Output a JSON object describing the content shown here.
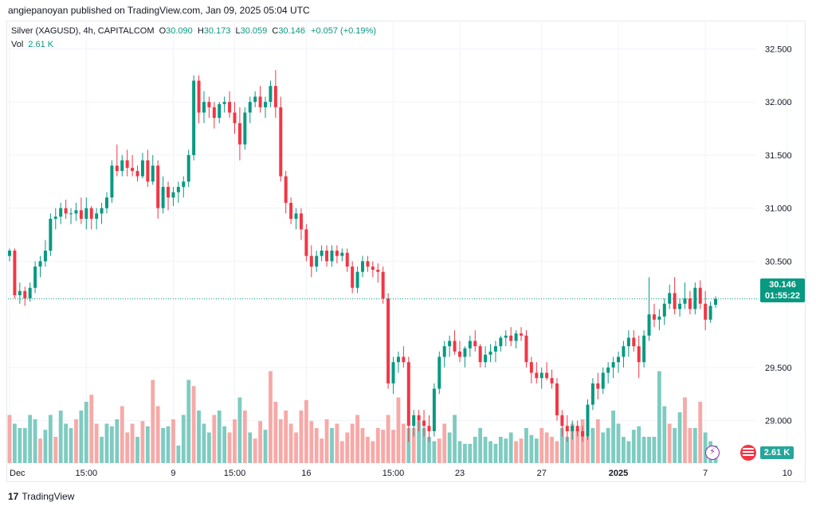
{
  "header": {
    "text": "angiepanoyan published on TradingView.com, Jan 09, 2025 05:04 UTC"
  },
  "legend": {
    "symbol": "Silver (XAGUSD), 4h, CAPITALCOM",
    "o_label": "O",
    "o": "30.090",
    "h_label": "H",
    "h": "30.173",
    "l_label": "L",
    "l": "30.059",
    "c_label": "C",
    "c": "30.146",
    "change": "+0.057 (+0.19%)",
    "vol_label": "Vol",
    "vol_value": "2.61 K"
  },
  "price_tag": {
    "price": "30.146",
    "countdown": "01:55:22"
  },
  "volume_tag": "2.61 K",
  "footer": {
    "logo": "17",
    "brand": "TradingView"
  },
  "colors": {
    "up": "#089981",
    "down": "#f23645",
    "vol_up": "#7ecbc1",
    "vol_down": "#f7a9a7"
  },
  "chart_data": {
    "type": "candlestick",
    "title": "Silver (XAGUSD), 4h, CAPITALCOM",
    "ylim": [
      28.6,
      32.75
    ],
    "y_ticks": [
      "32.500",
      "32.000",
      "31.500",
      "31.000",
      "30.500",
      "29.500",
      "29.000"
    ],
    "x_tick_labels": [
      "Dec",
      "15:00",
      "9",
      "15:00",
      "16",
      "15:00",
      "23",
      "27",
      "2025",
      "7",
      "10"
    ],
    "last_price": 30.146,
    "ohlc": [
      [
        30.55,
        30.62,
        30.5,
        30.6
      ],
      [
        30.6,
        30.62,
        30.15,
        30.18
      ],
      [
        30.18,
        30.3,
        30.1,
        30.22
      ],
      [
        30.22,
        30.26,
        30.08,
        30.15
      ],
      [
        30.15,
        30.3,
        30.12,
        30.25
      ],
      [
        30.25,
        30.5,
        30.2,
        30.45
      ],
      [
        30.45,
        30.55,
        30.35,
        30.5
      ],
      [
        30.5,
        30.7,
        30.45,
        30.6
      ],
      [
        30.6,
        30.95,
        30.55,
        30.9
      ],
      [
        30.9,
        31.0,
        30.8,
        30.92
      ],
      [
        30.92,
        31.05,
        30.85,
        31.0
      ],
      [
        31.0,
        31.08,
        30.9,
        30.95
      ],
      [
        30.95,
        31.0,
        30.85,
        30.95
      ],
      [
        30.95,
        31.05,
        30.88,
        30.98
      ],
      [
        30.98,
        31.1,
        30.85,
        30.9
      ],
      [
        30.9,
        31.1,
        30.8,
        31.0
      ],
      [
        31.0,
        31.02,
        30.8,
        30.9
      ],
      [
        30.9,
        31.0,
        30.8,
        30.95
      ],
      [
        30.95,
        31.05,
        30.85,
        31.0
      ],
      [
        31.0,
        31.15,
        30.95,
        31.1
      ],
      [
        31.1,
        31.45,
        31.05,
        31.4
      ],
      [
        31.4,
        31.6,
        31.3,
        31.35
      ],
      [
        31.35,
        31.5,
        31.3,
        31.45
      ],
      [
        31.45,
        31.55,
        31.3,
        31.38
      ],
      [
        31.38,
        31.5,
        31.3,
        31.35
      ],
      [
        31.35,
        31.4,
        31.25,
        31.3
      ],
      [
        31.3,
        31.52,
        31.28,
        31.45
      ],
      [
        31.45,
        31.55,
        31.2,
        31.25
      ],
      [
        31.25,
        31.5,
        31.22,
        31.4
      ],
      [
        31.4,
        31.45,
        30.9,
        31.0
      ],
      [
        31.0,
        31.3,
        30.95,
        31.2
      ],
      [
        31.2,
        31.25,
        30.98,
        31.1
      ],
      [
        31.1,
        31.2,
        31.02,
        31.15
      ],
      [
        31.15,
        31.25,
        31.05,
        31.2
      ],
      [
        31.2,
        31.3,
        31.1,
        31.25
      ],
      [
        31.25,
        31.55,
        31.2,
        31.5
      ],
      [
        31.5,
        32.25,
        31.45,
        32.2
      ],
      [
        32.2,
        32.25,
        31.8,
        31.9
      ],
      [
        31.9,
        32.1,
        31.8,
        32.0
      ],
      [
        32.0,
        32.05,
        31.85,
        31.95
      ],
      [
        31.95,
        32.0,
        31.75,
        31.85
      ],
      [
        31.85,
        32.0,
        31.8,
        31.98
      ],
      [
        31.98,
        32.05,
        31.9,
        32.0
      ],
      [
        32.0,
        32.1,
        31.85,
        31.9
      ],
      [
        31.9,
        32.0,
        31.7,
        31.8
      ],
      [
        31.8,
        31.95,
        31.45,
        31.6
      ],
      [
        31.6,
        31.95,
        31.55,
        31.9
      ],
      [
        31.9,
        32.05,
        31.8,
        32.0
      ],
      [
        32.0,
        32.1,
        31.95,
        32.05
      ],
      [
        32.05,
        32.15,
        31.9,
        31.95
      ],
      [
        31.95,
        32.05,
        31.85,
        32.0
      ],
      [
        32.0,
        32.2,
        31.95,
        32.15
      ],
      [
        32.15,
        32.3,
        31.85,
        31.95
      ],
      [
        31.95,
        32.05,
        31.25,
        31.3
      ],
      [
        31.3,
        31.35,
        30.95,
        31.05
      ],
      [
        31.05,
        31.1,
        30.85,
        30.9
      ],
      [
        30.9,
        31.0,
        30.8,
        30.95
      ],
      [
        30.95,
        31.0,
        30.7,
        30.8
      ],
      [
        30.8,
        30.85,
        30.5,
        30.55
      ],
      [
        30.55,
        30.65,
        30.35,
        30.45
      ],
      [
        30.45,
        30.6,
        30.4,
        30.55
      ],
      [
        30.55,
        30.65,
        30.5,
        30.6
      ],
      [
        30.6,
        30.65,
        30.45,
        30.5
      ],
      [
        30.5,
        30.65,
        30.45,
        30.6
      ],
      [
        30.6,
        30.65,
        30.48,
        30.55
      ],
      [
        30.55,
        30.62,
        30.5,
        30.58
      ],
      [
        30.58,
        30.62,
        30.4,
        30.45
      ],
      [
        30.45,
        30.5,
        30.2,
        30.25
      ],
      [
        30.25,
        30.45,
        30.2,
        30.4
      ],
      [
        30.4,
        30.55,
        30.35,
        30.5
      ],
      [
        30.5,
        30.55,
        30.4,
        30.45
      ],
      [
        30.45,
        30.5,
        30.35,
        30.42
      ],
      [
        30.42,
        30.48,
        30.3,
        30.4
      ],
      [
        30.4,
        30.45,
        30.1,
        30.15
      ],
      [
        30.15,
        30.2,
        29.3,
        29.35
      ],
      [
        29.35,
        29.6,
        29.25,
        29.55
      ],
      [
        29.55,
        29.65,
        29.45,
        29.6
      ],
      [
        29.6,
        29.7,
        29.5,
        29.55
      ],
      [
        29.55,
        29.6,
        28.8,
        28.95
      ],
      [
        28.95,
        29.1,
        28.85,
        29.05
      ],
      [
        29.05,
        29.1,
        28.9,
        29.0
      ],
      [
        29.0,
        29.1,
        28.85,
        28.95
      ],
      [
        28.95,
        29.05,
        28.8,
        28.9
      ],
      [
        28.9,
        29.35,
        28.85,
        29.3
      ],
      [
        29.3,
        29.65,
        29.25,
        29.6
      ],
      [
        29.6,
        29.75,
        29.5,
        29.7
      ],
      [
        29.7,
        29.8,
        29.6,
        29.75
      ],
      [
        29.75,
        29.85,
        29.62,
        29.65
      ],
      [
        29.65,
        29.75,
        29.55,
        29.6
      ],
      [
        29.6,
        29.7,
        29.5,
        29.68
      ],
      [
        29.68,
        29.8,
        29.6,
        29.75
      ],
      [
        29.75,
        29.85,
        29.65,
        29.7
      ],
      [
        29.7,
        29.72,
        29.5,
        29.55
      ],
      [
        29.55,
        29.7,
        29.5,
        29.62
      ],
      [
        29.62,
        29.72,
        29.55,
        29.65
      ],
      [
        29.65,
        29.75,
        29.55,
        29.7
      ],
      [
        29.7,
        29.8,
        29.65,
        29.78
      ],
      [
        29.78,
        29.85,
        29.7,
        29.8
      ],
      [
        29.8,
        29.88,
        29.7,
        29.75
      ],
      [
        29.75,
        29.85,
        29.68,
        29.82
      ],
      [
        29.82,
        29.88,
        29.75,
        29.8
      ],
      [
        29.8,
        29.85,
        29.5,
        29.55
      ],
      [
        29.55,
        29.6,
        29.35,
        29.45
      ],
      [
        29.45,
        29.55,
        29.35,
        29.4
      ],
      [
        29.4,
        29.5,
        29.3,
        29.45
      ],
      [
        29.45,
        29.55,
        29.38,
        29.4
      ],
      [
        29.4,
        29.48,
        29.3,
        29.35
      ],
      [
        29.35,
        29.4,
        29.0,
        29.05
      ],
      [
        29.05,
        29.1,
        28.85,
        28.95
      ],
      [
        28.95,
        29.05,
        28.8,
        28.9
      ],
      [
        28.9,
        29.0,
        28.82,
        28.95
      ],
      [
        28.95,
        29.0,
        28.85,
        28.9
      ],
      [
        28.9,
        28.95,
        28.8,
        28.85
      ],
      [
        28.85,
        29.2,
        28.82,
        29.15
      ],
      [
        29.15,
        29.4,
        29.1,
        29.35
      ],
      [
        29.35,
        29.45,
        29.2,
        29.3
      ],
      [
        29.3,
        29.5,
        29.25,
        29.45
      ],
      [
        29.45,
        29.55,
        29.35,
        29.5
      ],
      [
        29.5,
        29.6,
        29.4,
        29.55
      ],
      [
        29.55,
        29.65,
        29.45,
        29.6
      ],
      [
        29.6,
        29.75,
        29.5,
        29.7
      ],
      [
        29.7,
        29.85,
        29.6,
        29.78
      ],
      [
        29.78,
        29.85,
        29.65,
        29.7
      ],
      [
        29.7,
        29.8,
        29.4,
        29.55
      ],
      [
        29.55,
        29.85,
        29.5,
        29.8
      ],
      [
        29.8,
        30.35,
        29.75,
        30.0
      ],
      [
        30.0,
        30.1,
        29.88,
        29.95
      ],
      [
        29.95,
        30.05,
        29.85,
        29.98
      ],
      [
        29.98,
        30.15,
        29.9,
        30.1
      ],
      [
        30.1,
        30.28,
        30.05,
        30.2
      ],
      [
        30.2,
        30.35,
        30.0,
        30.05
      ],
      [
        30.05,
        30.15,
        29.98,
        30.1
      ],
      [
        30.1,
        30.3,
        30.05,
        30.15
      ],
      [
        30.15,
        30.22,
        30.0,
        30.05
      ],
      [
        30.05,
        30.3,
        30.0,
        30.25
      ],
      [
        30.25,
        30.32,
        30.05,
        30.1
      ],
      [
        30.1,
        30.22,
        29.85,
        29.95
      ],
      [
        29.95,
        30.12,
        29.92,
        30.08
      ],
      [
        30.09,
        30.17,
        30.06,
        30.146
      ]
    ],
    "volume": [
      {
        "v": 0.55,
        "up": false
      },
      {
        "v": 0.45,
        "up": true
      },
      {
        "v": 0.4,
        "up": true
      },
      {
        "v": 0.4,
        "up": true
      },
      {
        "v": 0.55,
        "up": true
      },
      {
        "v": 0.5,
        "up": true
      },
      {
        "v": 0.28,
        "up": false
      },
      {
        "v": 0.38,
        "up": true
      },
      {
        "v": 0.55,
        "up": true
      },
      {
        "v": 0.3,
        "up": false
      },
      {
        "v": 0.6,
        "up": true
      },
      {
        "v": 0.45,
        "up": true
      },
      {
        "v": 0.4,
        "up": true
      },
      {
        "v": 0.5,
        "up": false
      },
      {
        "v": 0.6,
        "up": true
      },
      {
        "v": 0.7,
        "up": true
      },
      {
        "v": 0.78,
        "up": false
      },
      {
        "v": 0.45,
        "up": false
      },
      {
        "v": 0.3,
        "up": true
      },
      {
        "v": 0.45,
        "up": true
      },
      {
        "v": 0.42,
        "up": true
      },
      {
        "v": 0.5,
        "up": true
      },
      {
        "v": 0.65,
        "up": false
      },
      {
        "v": 0.35,
        "up": false
      },
      {
        "v": 0.45,
        "up": false
      },
      {
        "v": 0.3,
        "up": true
      },
      {
        "v": 0.48,
        "up": false
      },
      {
        "v": 0.42,
        "up": true
      },
      {
        "v": 0.95,
        "up": false
      },
      {
        "v": 0.65,
        "up": false
      },
      {
        "v": 0.4,
        "up": true
      },
      {
        "v": 0.42,
        "up": true
      },
      {
        "v": 0.5,
        "up": false
      },
      {
        "v": 0.2,
        "up": true
      },
      {
        "v": 0.55,
        "up": true
      },
      {
        "v": 0.95,
        "up": true
      },
      {
        "v": 0.88,
        "up": false
      },
      {
        "v": 0.6,
        "up": true
      },
      {
        "v": 0.45,
        "up": true
      },
      {
        "v": 0.35,
        "up": true
      },
      {
        "v": 0.55,
        "up": false
      },
      {
        "v": 0.6,
        "up": true
      },
      {
        "v": 0.42,
        "up": true
      },
      {
        "v": 0.35,
        "up": false
      },
      {
        "v": 0.5,
        "up": false
      },
      {
        "v": 0.75,
        "up": true
      },
      {
        "v": 0.6,
        "up": false
      },
      {
        "v": 0.35,
        "up": true
      },
      {
        "v": 0.28,
        "up": false
      },
      {
        "v": 0.48,
        "up": false
      },
      {
        "v": 0.38,
        "up": true
      },
      {
        "v": 1.05,
        "up": false
      },
      {
        "v": 0.7,
        "up": false
      },
      {
        "v": 0.5,
        "up": false
      },
      {
        "v": 0.6,
        "up": false
      },
      {
        "v": 0.45,
        "up": false
      },
      {
        "v": 0.35,
        "up": false
      },
      {
        "v": 0.6,
        "up": false
      },
      {
        "v": 0.72,
        "up": false
      },
      {
        "v": 0.48,
        "up": false
      },
      {
        "v": 0.4,
        "up": false
      },
      {
        "v": 0.28,
        "up": false
      },
      {
        "v": 0.5,
        "up": false
      },
      {
        "v": 0.4,
        "up": true
      },
      {
        "v": 0.45,
        "up": false
      },
      {
        "v": 0.25,
        "up": false
      },
      {
        "v": 0.35,
        "up": false
      },
      {
        "v": 0.45,
        "up": false
      },
      {
        "v": 0.55,
        "up": false
      },
      {
        "v": 0.4,
        "up": false
      },
      {
        "v": 0.3,
        "up": false
      },
      {
        "v": 0.25,
        "up": false
      },
      {
        "v": 0.4,
        "up": false
      },
      {
        "v": 0.38,
        "up": false
      },
      {
        "v": 0.55,
        "up": false
      },
      {
        "v": 0.38,
        "up": false
      },
      {
        "v": 0.75,
        "up": false
      },
      {
        "v": 0.45,
        "up": false
      },
      {
        "v": 0.4,
        "up": true
      },
      {
        "v": 0.4,
        "up": false
      },
      {
        "v": 0.48,
        "up": true
      },
      {
        "v": 0.4,
        "up": true
      },
      {
        "v": 0.3,
        "up": true
      },
      {
        "v": 0.25,
        "up": true
      },
      {
        "v": 0.28,
        "up": false
      },
      {
        "v": 0.45,
        "up": false
      },
      {
        "v": 0.35,
        "up": true
      },
      {
        "v": 0.55,
        "up": true
      },
      {
        "v": 0.25,
        "up": true
      },
      {
        "v": 0.22,
        "up": true
      },
      {
        "v": 0.22,
        "up": true
      },
      {
        "v": 0.3,
        "up": true
      },
      {
        "v": 0.4,
        "up": true
      },
      {
        "v": 0.3,
        "up": true
      },
      {
        "v": 0.25,
        "up": true
      },
      {
        "v": 0.22,
        "up": true
      },
      {
        "v": 0.3,
        "up": true
      },
      {
        "v": 0.28,
        "up": true
      },
      {
        "v": 0.35,
        "up": true
      },
      {
        "v": 0.25,
        "up": false
      },
      {
        "v": 0.28,
        "up": false
      },
      {
        "v": 0.4,
        "up": true
      },
      {
        "v": 0.32,
        "up": true
      },
      {
        "v": 0.28,
        "up": true
      },
      {
        "v": 0.4,
        "up": false
      },
      {
        "v": 0.35,
        "up": false
      },
      {
        "v": 0.3,
        "up": false
      },
      {
        "v": 0.25,
        "up": false
      },
      {
        "v": 0.4,
        "up": true
      },
      {
        "v": 0.3,
        "up": true
      },
      {
        "v": 0.45,
        "up": false
      },
      {
        "v": 0.38,
        "up": false
      },
      {
        "v": 0.5,
        "up": false
      },
      {
        "v": 0.3,
        "up": false
      },
      {
        "v": 0.4,
        "up": true
      },
      {
        "v": 0.5,
        "up": false
      },
      {
        "v": 0.35,
        "up": true
      },
      {
        "v": 0.4,
        "up": true
      },
      {
        "v": 0.6,
        "up": true
      },
      {
        "v": 0.45,
        "up": true
      },
      {
        "v": 0.3,
        "up": true
      },
      {
        "v": 0.25,
        "up": true
      },
      {
        "v": 0.38,
        "up": true
      },
      {
        "v": 0.42,
        "up": true
      },
      {
        "v": 0.3,
        "up": true
      },
      {
        "v": 0.3,
        "up": true
      },
      {
        "v": 0.3,
        "up": true
      },
      {
        "v": 1.05,
        "up": true
      },
      {
        "v": 0.65,
        "up": true
      },
      {
        "v": 0.45,
        "up": false
      },
      {
        "v": 0.4,
        "up": true
      },
      {
        "v": 0.58,
        "up": true
      },
      {
        "v": 0.75,
        "up": false
      },
      {
        "v": 0.4,
        "up": false
      },
      {
        "v": 0.4,
        "up": true
      },
      {
        "v": 0.7,
        "up": false
      },
      {
        "v": 0.35,
        "up": true
      },
      {
        "v": 0.25,
        "up": true
      },
      {
        "v": 0.2,
        "up": true
      }
    ]
  }
}
